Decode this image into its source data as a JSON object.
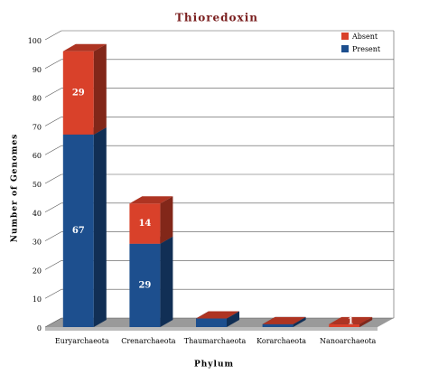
{
  "chart_data": {
    "type": "bar3d_stacked",
    "title": "Thioredoxin",
    "x_label": "Phylum",
    "y_label": "Number of Genomes",
    "categories": [
      "Euryarchaeota",
      "Crenarchaeota",
      "Thaumarchaeota",
      "Korarchaeota",
      "Nanoarchaeota"
    ],
    "series": [
      {
        "name": "Absent",
        "color": "#d9412a",
        "values": [
          29,
          14,
          0,
          0,
          1
        ]
      },
      {
        "name": "Present",
        "color": "#1d4f8e",
        "values": [
          67,
          29,
          3,
          1,
          0
        ]
      }
    ],
    "ylim": [
      0,
      100
    ],
    "yticks": [
      0,
      10,
      20,
      30,
      40,
      50,
      60,
      70,
      80,
      90,
      100
    ],
    "grid": true,
    "legend": "top-right"
  }
}
